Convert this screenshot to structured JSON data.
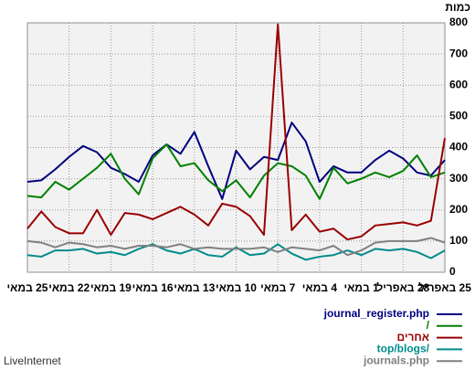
{
  "chart_data": {
    "type": "line",
    "y_label": "כמות",
    "brand": "LiveInternet",
    "categories": [
      "25 במאי",
      null,
      null,
      "22 במאי",
      null,
      null,
      "19 במאי",
      null,
      null,
      "16 במאי",
      null,
      null,
      "13 במאי",
      null,
      null,
      "10 במאי",
      null,
      null,
      "7 במאי",
      null,
      null,
      "4 במאי",
      null,
      null,
      "1 במאי",
      null,
      null,
      "28 באפריל",
      null,
      null,
      "25 באפריל"
    ],
    "series": [
      {
        "name": "journal_register.php",
        "color": "#000080",
        "values": [
          290,
          295,
          330,
          370,
          405,
          385,
          335,
          315,
          290,
          375,
          410,
          380,
          450,
          340,
          235,
          390,
          330,
          370,
          360,
          480,
          420,
          290,
          340,
          320,
          320,
          360,
          390,
          365,
          320,
          310,
          360
        ]
      },
      {
        "name": "/",
        "color": "#008000",
        "values": [
          245,
          240,
          290,
          265,
          300,
          335,
          380,
          300,
          250,
          365,
          410,
          340,
          350,
          295,
          260,
          295,
          240,
          310,
          350,
          340,
          310,
          235,
          335,
          285,
          300,
          320,
          305,
          325,
          375,
          305,
          320
        ]
      },
      {
        "name": "אחרים",
        "color": "#990000",
        "values": [
          140,
          195,
          145,
          125,
          125,
          200,
          120,
          190,
          185,
          170,
          190,
          210,
          185,
          150,
          220,
          210,
          180,
          120,
          795,
          135,
          185,
          130,
          140,
          105,
          115,
          150,
          155,
          160,
          150,
          165,
          430
        ]
      },
      {
        "name": "top/blogs/",
        "color": "#008b8b",
        "values": [
          55,
          50,
          70,
          70,
          75,
          60,
          65,
          55,
          75,
          90,
          70,
          60,
          75,
          55,
          50,
          80,
          55,
          60,
          90,
          60,
          40,
          50,
          55,
          70,
          55,
          75,
          70,
          75,
          65,
          45,
          70
        ]
      },
      {
        "name": "journals.php",
        "color": "#808080",
        "values": [
          100,
          95,
          80,
          95,
          90,
          80,
          85,
          75,
          85,
          85,
          80,
          90,
          75,
          80,
          75,
          75,
          75,
          80,
          65,
          80,
          75,
          70,
          85,
          55,
          70,
          95,
          100,
          100,
          100,
          110,
          95
        ]
      }
    ],
    "ylim": [
      0,
      800
    ],
    "yticks": [
      0,
      100,
      200,
      300,
      400,
      500,
      600,
      700,
      800
    ],
    "grid": true
  }
}
